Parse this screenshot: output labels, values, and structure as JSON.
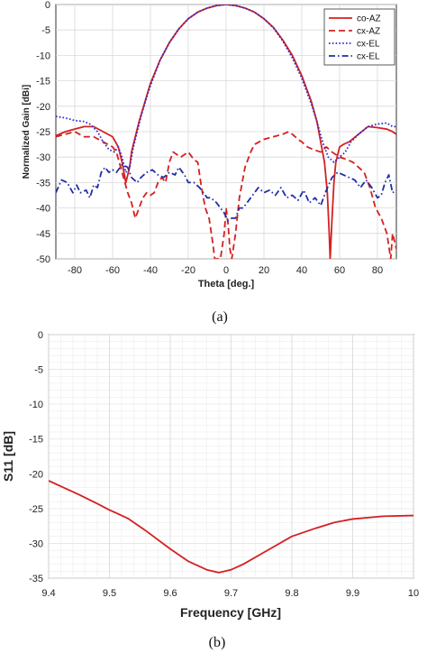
{
  "chart_data": [
    {
      "type": "line",
      "caption": "(a)",
      "xlabel": "Theta [deg.]",
      "ylabel": "Normalized Gain [dBi]",
      "xlim": [
        -90,
        90
      ],
      "ylim": [
        -50,
        0
      ],
      "xticks": [
        -80,
        -60,
        -40,
        -20,
        0,
        20,
        40,
        60,
        80
      ],
      "yticks": [
        0,
        -5,
        -10,
        -15,
        -20,
        -25,
        -30,
        -35,
        -40,
        -45,
        -50
      ],
      "grid": true,
      "legend_position": "top-right",
      "series": [
        {
          "name": "co-AZ",
          "color": "#d42020",
          "style": "solid",
          "points": [
            [
              -90,
              -25.8
            ],
            [
              -85,
              -25
            ],
            [
              -80,
              -24.5
            ],
            [
              -75,
              -24
            ],
            [
              -70,
              -24
            ],
            [
              -65,
              -25
            ],
            [
              -60,
              -26
            ],
            [
              -57,
              -28
            ],
            [
              -55,
              -31
            ],
            [
              -53,
              -35
            ],
            [
              -51,
              -32
            ],
            [
              -50,
              -29
            ],
            [
              -48,
              -26
            ],
            [
              -46,
              -23
            ],
            [
              -44,
              -20.5
            ],
            [
              -42,
              -18
            ],
            [
              -40,
              -15.5
            ],
            [
              -35,
              -11
            ],
            [
              -30,
              -7.5
            ],
            [
              -25,
              -4.8
            ],
            [
              -20,
              -2.8
            ],
            [
              -15,
              -1.5
            ],
            [
              -10,
              -0.7
            ],
            [
              -5,
              -0.2
            ],
            [
              0,
              0
            ],
            [
              5,
              -0.2
            ],
            [
              10,
              -0.7
            ],
            [
              15,
              -1.5
            ],
            [
              20,
              -2.8
            ],
            [
              25,
              -4.5
            ],
            [
              30,
              -7
            ],
            [
              35,
              -10
            ],
            [
              40,
              -14
            ],
            [
              45,
              -19
            ],
            [
              48,
              -23
            ],
            [
              50,
              -27
            ],
            [
              52,
              -31
            ],
            [
              53.5,
              -37
            ],
            [
              54.5,
              -45
            ],
            [
              55,
              -50
            ],
            [
              56,
              -42
            ],
            [
              57,
              -35
            ],
            [
              58,
              -31
            ],
            [
              60,
              -28
            ],
            [
              62,
              -27.5
            ],
            [
              65,
              -27
            ],
            [
              70,
              -25.5
            ],
            [
              75,
              -24
            ],
            [
              80,
              -24.2
            ],
            [
              85,
              -24.5
            ],
            [
              88,
              -25
            ],
            [
              90,
              -25.5
            ]
          ]
        },
        {
          "name": "cx-AZ",
          "color": "#d42020",
          "style": "dashed",
          "points": [
            [
              -90,
              -26
            ],
            [
              -85,
              -25.5
            ],
            [
              -80,
              -25
            ],
            [
              -75,
              -26
            ],
            [
              -70,
              -26
            ],
            [
              -65,
              -27
            ],
            [
              -60,
              -28
            ],
            [
              -58,
              -29
            ],
            [
              -55,
              -33
            ],
            [
              -52,
              -37
            ],
            [
              -50,
              -39
            ],
            [
              -48,
              -42
            ],
            [
              -46,
              -40
            ],
            [
              -44,
              -38
            ],
            [
              -42,
              -37
            ],
            [
              -40,
              -37.5
            ],
            [
              -38,
              -37
            ],
            [
              -36,
              -35
            ],
            [
              -34,
              -34
            ],
            [
              -32,
              -35
            ],
            [
              -30,
              -31
            ],
            [
              -28,
              -29
            ],
            [
              -26,
              -29.5
            ],
            [
              -24,
              -30
            ],
            [
              -20,
              -29
            ],
            [
              -17,
              -30.5
            ],
            [
              -15,
              -31
            ],
            [
              -13,
              -36
            ],
            [
              -11,
              -40
            ],
            [
              -9,
              -42
            ],
            [
              -7,
              -47
            ],
            [
              -6,
              -50
            ],
            [
              -3,
              -50
            ],
            [
              -1,
              -45
            ],
            [
              0,
              -40
            ],
            [
              1,
              -43
            ],
            [
              2,
              -48
            ],
            [
              3,
              -50
            ],
            [
              5,
              -45
            ],
            [
              7,
              -38
            ],
            [
              10,
              -32
            ],
            [
              13,
              -29
            ],
            [
              15,
              -27.5
            ],
            [
              20,
              -26.5
            ],
            [
              25,
              -26
            ],
            [
              30,
              -25.5
            ],
            [
              33,
              -25
            ],
            [
              35,
              -25.5
            ],
            [
              38,
              -26.5
            ],
            [
              40,
              -27
            ],
            [
              43,
              -28
            ],
            [
              46,
              -28.5
            ],
            [
              50,
              -29
            ],
            [
              53,
              -28
            ],
            [
              56,
              -29
            ],
            [
              60,
              -30
            ],
            [
              64,
              -30.5
            ],
            [
              67,
              -31
            ],
            [
              70,
              -32
            ],
            [
              73,
              -33
            ],
            [
              76,
              -36
            ],
            [
              79,
              -40
            ],
            [
              82,
              -42
            ],
            [
              85,
              -45
            ],
            [
              87,
              -50
            ],
            [
              88,
              -45
            ],
            [
              90,
              -48
            ]
          ]
        },
        {
          "name": "cx-EL",
          "color": "#2a2ad0",
          "style": "dotted",
          "points": [
            [
              -90,
              -22
            ],
            [
              -85,
              -22.3
            ],
            [
              -80,
              -22.8
            ],
            [
              -75,
              -23
            ],
            [
              -72,
              -23.5
            ],
            [
              -68,
              -25
            ],
            [
              -65,
              -27
            ],
            [
              -62,
              -28.5
            ],
            [
              -59,
              -29
            ],
            [
              -57,
              -28
            ],
            [
              -55,
              -30
            ],
            [
              -53,
              -33
            ],
            [
              -51,
              -32
            ],
            [
              -49,
              -28
            ],
            [
              -47,
              -25
            ],
            [
              -45,
              -22
            ],
            [
              -43,
              -19.5
            ],
            [
              -41,
              -17
            ],
            [
              -38,
              -14
            ],
            [
              -35,
              -11
            ],
            [
              -30,
              -7.5
            ],
            [
              -25,
              -4.8
            ],
            [
              -20,
              -2.8
            ],
            [
              -15,
              -1.5
            ],
            [
              -10,
              -0.7
            ],
            [
              -5,
              -0.2
            ],
            [
              0,
              0
            ],
            [
              5,
              -0.2
            ],
            [
              10,
              -0.7
            ],
            [
              15,
              -1.5
            ],
            [
              20,
              -2.8
            ],
            [
              25,
              -4.6
            ],
            [
              30,
              -7.2
            ],
            [
              35,
              -10.5
            ],
            [
              40,
              -14.5
            ],
            [
              45,
              -19.5
            ],
            [
              48,
              -23
            ],
            [
              51,
              -27
            ],
            [
              54,
              -30
            ],
            [
              57,
              -31
            ],
            [
              60,
              -30
            ],
            [
              63,
              -29
            ],
            [
              66,
              -27
            ],
            [
              70,
              -25.5
            ],
            [
              75,
              -24
            ],
            [
              80,
              -23.5
            ],
            [
              85,
              -23.3
            ],
            [
              88,
              -24
            ],
            [
              90,
              -24
            ]
          ]
        },
        {
          "name": "cx-EL",
          "color": "#1f2fa8",
          "style": "dashdot",
          "points": [
            [
              -90,
              -37
            ],
            [
              -87,
              -34.5
            ],
            [
              -84,
              -35
            ],
            [
              -81,
              -37
            ],
            [
              -79,
              -35.5
            ],
            [
              -77,
              -37
            ],
            [
              -74,
              -36.5
            ],
            [
              -72,
              -38
            ],
            [
              -70,
              -35.5
            ],
            [
              -68,
              -36
            ],
            [
              -66,
              -33
            ],
            [
              -64,
              -32
            ],
            [
              -62,
              -33
            ],
            [
              -60,
              -32.5
            ],
            [
              -58,
              -33
            ],
            [
              -55,
              -31.5
            ],
            [
              -52,
              -32
            ],
            [
              -50,
              -34
            ],
            [
              -47,
              -35
            ],
            [
              -45,
              -34
            ],
            [
              -42,
              -33
            ],
            [
              -39,
              -32.5
            ],
            [
              -36,
              -33.5
            ],
            [
              -33,
              -34
            ],
            [
              -30,
              -33
            ],
            [
              -27,
              -33.5
            ],
            [
              -25,
              -32
            ],
            [
              -22,
              -33.5
            ],
            [
              -20,
              -35
            ],
            [
              -17,
              -35
            ],
            [
              -14,
              -36
            ],
            [
              -12,
              -37
            ],
            [
              -10,
              -38
            ],
            [
              -8,
              -38
            ],
            [
              -5,
              -39
            ],
            [
              -3,
              -40
            ],
            [
              -1,
              -41
            ],
            [
              1,
              -42.5
            ],
            [
              3,
              -42
            ],
            [
              5,
              -42
            ],
            [
              7,
              -40
            ],
            [
              9,
              -40
            ],
            [
              11,
              -39
            ],
            [
              14,
              -37.5
            ],
            [
              17,
              -36
            ],
            [
              20,
              -37
            ],
            [
              23,
              -36.5
            ],
            [
              26,
              -37.5
            ],
            [
              29,
              -36
            ],
            [
              32,
              -38
            ],
            [
              35,
              -37.5
            ],
            [
              38,
              -38.5
            ],
            [
              41,
              -36.5
            ],
            [
              44,
              -39
            ],
            [
              47,
              -38
            ],
            [
              50,
              -39.5
            ],
            [
              53,
              -36.5
            ],
            [
              56,
              -34
            ],
            [
              59,
              -33
            ],
            [
              62,
              -33.5
            ],
            [
              65,
              -34
            ],
            [
              68,
              -34.5
            ],
            [
              71,
              -36
            ],
            [
              74,
              -34.5
            ],
            [
              77,
              -36
            ],
            [
              80,
              -38
            ],
            [
              82,
              -37.5
            ],
            [
              84,
              -35
            ],
            [
              86,
              -33.5
            ],
            [
              88,
              -37
            ],
            [
              90,
              -36.5
            ]
          ]
        }
      ]
    },
    {
      "type": "line",
      "caption": "(b)",
      "xlabel": "Frequency [GHz]",
      "ylabel": "S11 [dB]",
      "xlim": [
        9.4,
        10
      ],
      "ylim": [
        -35,
        0
      ],
      "xticks": [
        "9.4",
        "9.5",
        "9.6",
        "9.7",
        "9.8",
        "9.9",
        "10"
      ],
      "yticks": [
        0,
        -5,
        -10,
        -15,
        -20,
        -25,
        -30,
        -35
      ],
      "grid": true,
      "series": [
        {
          "color": "#d42020",
          "style": "solid",
          "points": [
            [
              9.4,
              -21
            ],
            [
              9.42,
              -21.8
            ],
            [
              9.45,
              -23
            ],
            [
              9.48,
              -24.3
            ],
            [
              9.5,
              -25.2
            ],
            [
              9.53,
              -26.4
            ],
            [
              9.56,
              -28.2
            ],
            [
              9.6,
              -30.8
            ],
            [
              9.63,
              -32.6
            ],
            [
              9.66,
              -33.8
            ],
            [
              9.68,
              -34.2
            ],
            [
              9.7,
              -33.8
            ],
            [
              9.72,
              -33
            ],
            [
              9.75,
              -31.5
            ],
            [
              9.8,
              -29
            ],
            [
              9.84,
              -27.8
            ],
            [
              9.87,
              -27
            ],
            [
              9.9,
              -26.5
            ],
            [
              9.95,
              -26.1
            ],
            [
              10,
              -26
            ]
          ]
        }
      ]
    }
  ]
}
